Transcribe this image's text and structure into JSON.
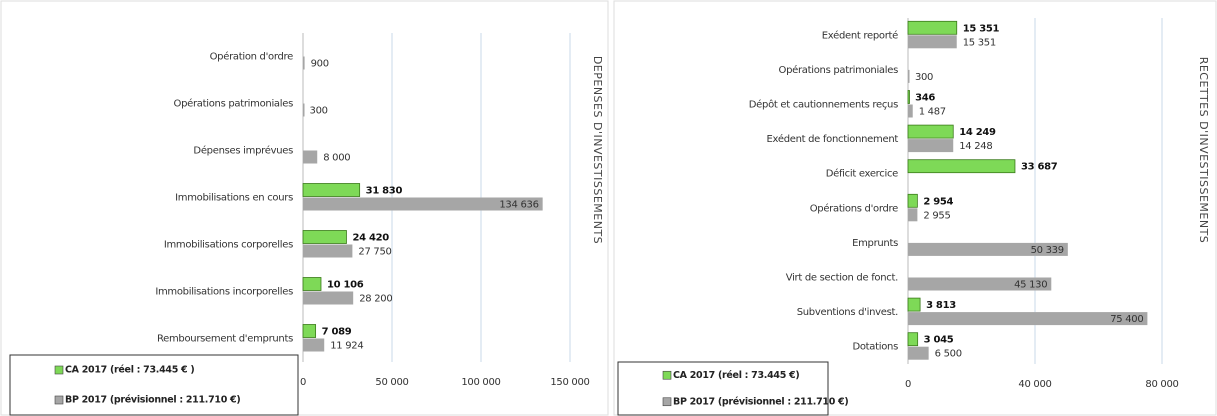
{
  "chart_data": [
    {
      "type": "bar",
      "orientation": "horizontal",
      "title": "DEPENSES D'INVESTISSEMENTS",
      "categories": [
        "Opération d'ordre",
        "Opérations patrimoniales",
        "Dépenses imprévues",
        "Immobilisations en cours",
        "Immobilisations corporelles",
        "Immobilisations incorporelles",
        "Remboursement d'emprunts"
      ],
      "series": [
        {
          "name": "CA 2017 (réel : 73.445 € )",
          "color": "#7ed957",
          "values": [
            null,
            null,
            null,
            31830,
            24420,
            10106,
            7089
          ],
          "value_labels": [
            null,
            null,
            null,
            "31 830",
            "24 420",
            "10 106",
            "7 089"
          ]
        },
        {
          "name": "BP 2017 (prévisionnel : 211.710 €)",
          "color": "#a6a6a6",
          "values": [
            900,
            300,
            8000,
            134636,
            27750,
            28200,
            11924
          ],
          "value_labels": [
            "900",
            "300",
            "8 000",
            "134 636",
            "27 750",
            "28 200",
            "11 924"
          ]
        }
      ],
      "xlim": [
        0,
        150000
      ],
      "xticks": [
        0,
        {
          "value": 50000,
          "label": "50 000"
        },
        {
          "value": 100000,
          "label": "100 000"
        },
        {
          "value": 150000,
          "label": "150 000"
        }
      ],
      "grid": true,
      "legend": "bottom-left"
    },
    {
      "type": "bar",
      "orientation": "horizontal",
      "title": "RECETTES D'INVESTISSEMENTS",
      "categories": [
        "Exédent reporté",
        "Opérations patrimoniales",
        "Dépôt et cautionnements reçus",
        "Exédent de fonctionnement",
        "Déficit exercice",
        "Opérations d'ordre",
        "Emprunts",
        "Virt de section de fonct.",
        "Subventions d'invest.",
        "Dotations"
      ],
      "series": [
        {
          "name": "CA 2017 (réel : 73.445 €)",
          "color": "#7ed957",
          "values": [
            15351,
            null,
            346,
            14249,
            33687,
            2954,
            null,
            null,
            3813,
            3045
          ],
          "value_labels": [
            "15 351",
            null,
            "346",
            "14 249",
            "33 687",
            "2 954",
            null,
            null,
            "3 813",
            "3 045"
          ]
        },
        {
          "name": "BP 2017 (prévisionnel : 211.710 €)",
          "color": "#a6a6a6",
          "values": [
            15351,
            300,
            1487,
            14248,
            null,
            2955,
            50339,
            45130,
            75400,
            6500
          ],
          "value_labels": [
            "15 351",
            "300",
            "1 487",
            "14 248",
            null,
            "2 955",
            "50 339",
            "45 130",
            "75 400",
            "6 500"
          ]
        }
      ],
      "xlim": [
        0,
        80000
      ],
      "xticks": [
        0,
        {
          "value": 40000,
          "label": "40 000"
        },
        {
          "value": 80000,
          "label": "80 000"
        }
      ],
      "grid": true,
      "legend": "bottom-left"
    }
  ]
}
